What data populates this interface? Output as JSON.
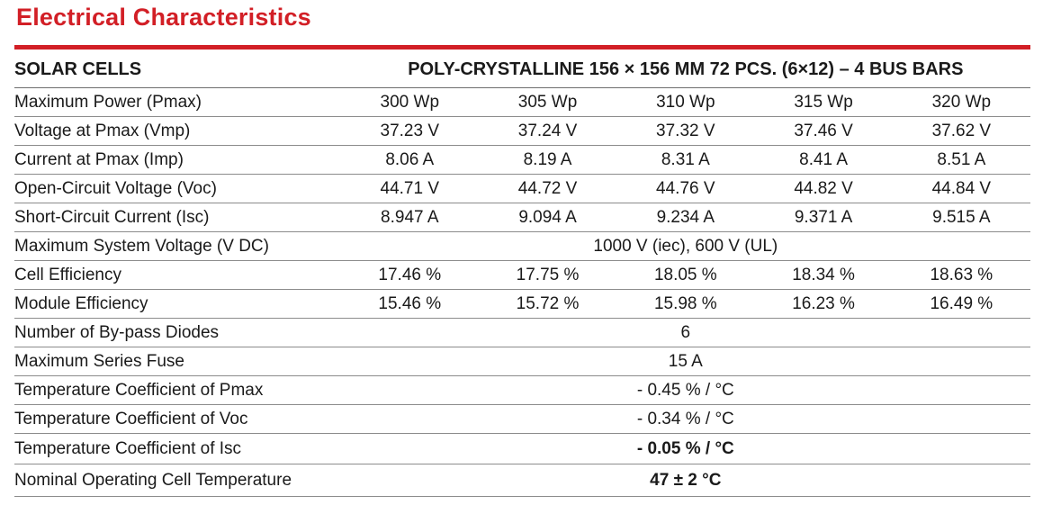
{
  "title": "Electrical Characteristics",
  "header": {
    "left": "SOLAR CELLS",
    "right": "POLY-CRYSTALLINE 156 × 156 MM 72 PCS. (6×12) – 4 BUS BARS"
  },
  "rows": [
    {
      "label": "Maximum Power (Pmax)",
      "values": [
        "300 Wp",
        "305 Wp",
        "310 Wp",
        "315 Wp",
        "320 Wp"
      ]
    },
    {
      "label": "Voltage at Pmax (Vmp)",
      "values": [
        "37.23 V",
        "37.24 V",
        "37.32 V",
        "37.46 V",
        "37.62 V"
      ]
    },
    {
      "label": "Current at Pmax (Imp)",
      "values": [
        "8.06 A",
        "8.19 A",
        "8.31 A",
        "8.41 A",
        "8.51 A"
      ]
    },
    {
      "label": "Open-Circuit Voltage (Voc)",
      "values": [
        "44.71 V",
        "44.72 V",
        "44.76 V",
        "44.82 V",
        "44.84 V"
      ]
    },
    {
      "label": "Short-Circuit Current (Isc)",
      "values": [
        "8.947 A",
        "9.094 A",
        "9.234 A",
        "9.371 A",
        "9.515 A"
      ]
    },
    {
      "label": "Maximum System Voltage (V DC)",
      "span": "1000 V (iec), 600 V (UL)"
    },
    {
      "label": "Cell Efficiency",
      "values": [
        "17.46 %",
        "17.75 %",
        "18.05 %",
        "18.34 %",
        "18.63 %"
      ]
    },
    {
      "label": "Module Efficiency",
      "values": [
        "15.46 %",
        "15.72 %",
        "15.98 %",
        "16.23 %",
        "16.49 %"
      ]
    },
    {
      "label": "Number of By-pass Diodes",
      "span": "6"
    },
    {
      "label": "Maximum Series Fuse",
      "span": "15 A"
    },
    {
      "label": "Temperature Coefficient of Pmax",
      "span": "- 0.45 % / °C"
    },
    {
      "label": "Temperature Coefficient of Voc",
      "span": "- 0.34 % / °C"
    },
    {
      "label": "Temperature Coefficient of Isc",
      "span": "- 0.05 % / °C"
    },
    {
      "label": "Nominal Operating Cell Temperature",
      "span": "47 ± 2 °C"
    }
  ]
}
